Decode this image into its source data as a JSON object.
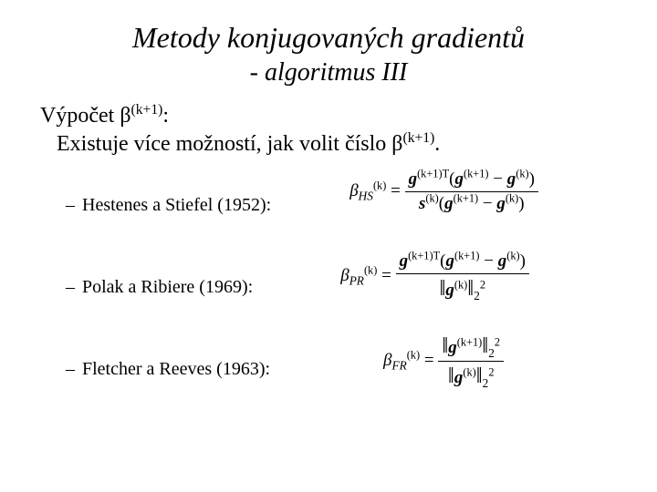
{
  "title": "Metody konjugovaných gradientů",
  "subtitle": "- algoritmus III",
  "intro_line1_a": "Výpočet ",
  "intro_line1_b": "β",
  "intro_line1_sup": "(k+1)",
  "intro_line1_c": ":",
  "intro_line2_a": "Existuje více možností, jak volit číslo ",
  "intro_line2_b": "β",
  "intro_line2_sup": "(k+1)",
  "intro_line2_c": ".",
  "items": [
    {
      "label": "Hestenes a Stiefel (1952):"
    },
    {
      "label": "Polak a Ribiere (1969):"
    },
    {
      "label": "Fletcher a Reeves (1963):"
    }
  ],
  "sym": {
    "beta": "β",
    "g": "g",
    "s": "s",
    "eq": " = ",
    "minus": " − ",
    "lpar": "(",
    "rpar": ")",
    "T": "T",
    "k": "(k)",
    "k1": "(k+1)",
    "k1T": "(k+1)T",
    "HS": "HS",
    "PR": "PR",
    "FR": "FR",
    "lnorm": "‖",
    "rnorm": "‖",
    "two": "2",
    "sq": "2"
  }
}
